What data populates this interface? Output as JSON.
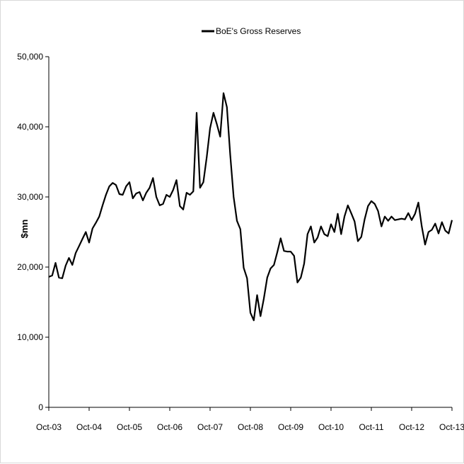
{
  "chart_data": {
    "type": "line",
    "title": "",
    "xlabel": "",
    "ylabel": "$mn",
    "ylim": [
      0,
      50000
    ],
    "y_ticks": [
      0,
      10000,
      20000,
      30000,
      40000,
      50000
    ],
    "y_tick_labels": [
      "0",
      "10,000",
      "20,000",
      "30,000",
      "40,000",
      "50,000"
    ],
    "x_tick_labels": [
      "Oct-03",
      "Oct-04",
      "Oct-05",
      "Oct-06",
      "Oct-07",
      "Oct-08",
      "Oct-09",
      "Oct-10",
      "Oct-11",
      "Oct-12",
      "Oct-13"
    ],
    "legend_position": "top-center",
    "grid": false,
    "series": [
      {
        "name": "BoE's Gross Reserves",
        "color": "#000000",
        "x": [
          "Oct-03",
          "Nov-03",
          "Dec-03",
          "Jan-04",
          "Feb-04",
          "Mar-04",
          "Apr-04",
          "May-04",
          "Jun-04",
          "Jul-04",
          "Aug-04",
          "Sep-04",
          "Oct-04",
          "Nov-04",
          "Dec-04",
          "Jan-05",
          "Feb-05",
          "Mar-05",
          "Apr-05",
          "May-05",
          "Jun-05",
          "Jul-05",
          "Aug-05",
          "Sep-05",
          "Oct-05",
          "Nov-05",
          "Dec-05",
          "Jan-06",
          "Feb-06",
          "Mar-06",
          "Apr-06",
          "May-06",
          "Jun-06",
          "Jul-06",
          "Aug-06",
          "Sep-06",
          "Oct-06",
          "Nov-06",
          "Dec-06",
          "Jan-07",
          "Feb-07",
          "Mar-07",
          "Apr-07",
          "May-07",
          "Jun-07",
          "Jul-07",
          "Aug-07",
          "Sep-07",
          "Oct-07",
          "Nov-07",
          "Dec-07",
          "Jan-08",
          "Feb-08",
          "Mar-08",
          "Apr-08",
          "May-08",
          "Jun-08",
          "Jul-08",
          "Aug-08",
          "Sep-08",
          "Oct-08",
          "Nov-08",
          "Dec-08",
          "Jan-09",
          "Feb-09",
          "Mar-09",
          "Apr-09",
          "May-09",
          "Jun-09",
          "Jul-09",
          "Aug-09",
          "Sep-09",
          "Oct-09",
          "Nov-09",
          "Dec-09",
          "Jan-10",
          "Feb-10",
          "Mar-10",
          "Apr-10",
          "May-10",
          "Jun-10",
          "Jul-10",
          "Aug-10",
          "Sep-10",
          "Oct-10",
          "Nov-10",
          "Dec-10",
          "Jan-11",
          "Feb-11",
          "Mar-11",
          "Apr-11",
          "May-11",
          "Jun-11",
          "Jul-11",
          "Aug-11",
          "Sep-11",
          "Oct-11",
          "Nov-11",
          "Dec-11",
          "Jan-12",
          "Feb-12",
          "Mar-12",
          "Apr-12",
          "May-12",
          "Jun-12",
          "Jul-12",
          "Aug-12",
          "Sep-12",
          "Oct-12",
          "Nov-12",
          "Dec-12",
          "Jan-13",
          "Feb-13",
          "Mar-13",
          "Apr-13",
          "May-13",
          "Jun-13",
          "Jul-13",
          "Aug-13",
          "Sep-13",
          "Oct-13"
        ],
        "values": [
          18600,
          18800,
          20600,
          18500,
          18400,
          20200,
          21300,
          20300,
          22000,
          23000,
          24000,
          25000,
          23500,
          25500,
          26300,
          27200,
          28800,
          30300,
          31500,
          32000,
          31700,
          30400,
          30300,
          31500,
          32100,
          29800,
          30500,
          30700,
          29500,
          30600,
          31300,
          32700,
          30000,
          28800,
          29000,
          30300,
          30000,
          31000,
          32400,
          28700,
          28200,
          30600,
          30300,
          30800,
          42000,
          31300,
          32100,
          35700,
          39800,
          42000,
          40400,
          38600,
          44800,
          42800,
          36000,
          30000,
          26600,
          25400,
          19900,
          18400,
          13500,
          12400,
          16000,
          13000,
          15500,
          18500,
          19800,
          20300,
          22100,
          24100,
          22300,
          22200,
          22200,
          21600,
          17800,
          18500,
          20500,
          24700,
          25800,
          23500,
          24200,
          25800,
          24700,
          24400,
          26100,
          25000,
          27600,
          24700,
          27200,
          28800,
          27700,
          26500,
          23700,
          24300,
          26800,
          28700,
          29400,
          29000,
          28000,
          25800,
          27200,
          26600,
          27200,
          26700,
          26800,
          26900,
          26800,
          27700,
          26700,
          27600,
          29200,
          25800,
          23200,
          25000,
          25300,
          26200,
          24800,
          26400,
          25200,
          24800,
          26700
        ]
      }
    ]
  }
}
